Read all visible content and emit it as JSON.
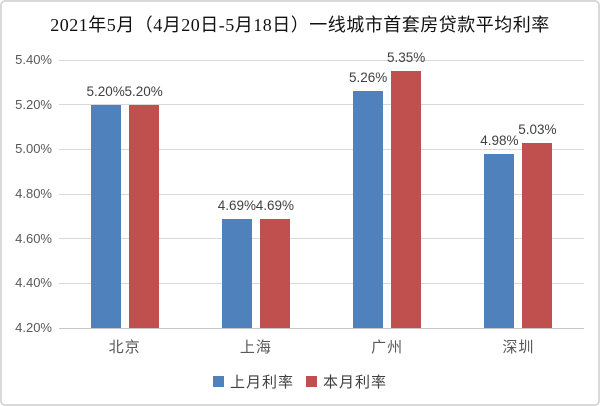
{
  "chart": {
    "title": "2021年5月（4月20日-5月18日）一线城市首套房贷款平均利率"
  },
  "chart_data": {
    "type": "bar",
    "title": "2021年5月（4月20日-5月18日）一线城市首套房贷款平均利率",
    "categories": [
      "北京",
      "上海",
      "广州",
      "深圳"
    ],
    "series": [
      {
        "name": "上月利率",
        "color": "#4F81BD",
        "values": [
          5.2,
          4.69,
          5.26,
          4.98
        ],
        "labels": [
          "5.20%",
          "4.69%",
          "5.26%",
          "4.98%"
        ]
      },
      {
        "name": "本月利率",
        "color": "#C0504D",
        "values": [
          5.2,
          4.69,
          5.35,
          5.03
        ],
        "labels": [
          "5.20%",
          "4.69%",
          "5.35%",
          "5.03%"
        ]
      }
    ],
    "xlabel": "",
    "ylabel": "",
    "ylim": [
      4.2,
      5.4
    ],
    "ytick_step": 0.2,
    "ytick_labels": [
      "4.20%",
      "4.40%",
      "4.60%",
      "4.80%",
      "5.00%",
      "5.20%",
      "5.40%"
    ],
    "grid": true,
    "gridline_color": "#D9D9D9",
    "legend_position": "bottom"
  }
}
